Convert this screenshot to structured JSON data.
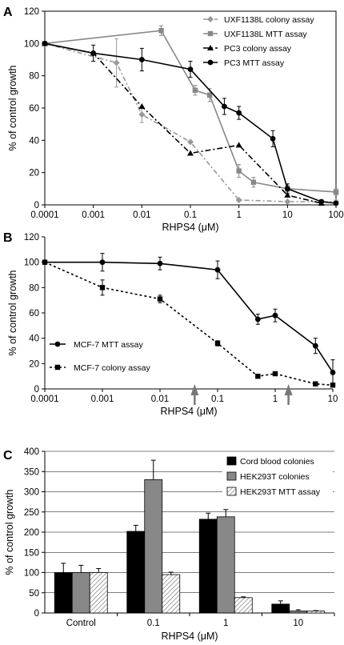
{
  "panels": {
    "a": {
      "letter": "A"
    },
    "b": {
      "letter": "B"
    },
    "c": {
      "letter": "C"
    }
  },
  "chart_data": [
    {
      "type": "line",
      "panel": "A",
      "xlabel": "RHPS4 (μM)",
      "ylabel": "% of control growth",
      "xscale": "log",
      "xlim": [
        0.0001,
        100
      ],
      "ylim": [
        0,
        120
      ],
      "x_tick_labels": [
        "0.0001",
        "0.001",
        "0.01",
        "0.1",
        "1",
        "10",
        "100"
      ],
      "y_tick_labels": [
        "0",
        "20",
        "40",
        "60",
        "80",
        "100",
        "120"
      ],
      "grid": false,
      "legend_position": "top-right",
      "series": [
        {
          "name": "UXF1138L colony assay",
          "color": "#999999",
          "marker": "diamond",
          "dash": "6,3,2,3",
          "x": [
            0.0001,
            0.003,
            0.01,
            0.1,
            1,
            10,
            100
          ],
          "y": [
            100,
            88,
            56,
            39,
            3,
            2,
            2
          ],
          "err": [
            0,
            15,
            5,
            0,
            0,
            0,
            0
          ]
        },
        {
          "name": "UXF1138L MTT assay",
          "color": "#888888",
          "marker": "square",
          "dash": "",
          "x": [
            0.0001,
            0.025,
            0.125,
            0.25,
            1,
            2,
            10,
            100
          ],
          "y": [
            100,
            108,
            71,
            68,
            21,
            14,
            10,
            8
          ],
          "err": [
            0,
            3,
            3,
            4,
            4,
            3,
            2,
            2
          ]
        },
        {
          "name": "PC3 colony assay",
          "color": "#000000",
          "marker": "triangle",
          "dash": "7,3,2,3",
          "x": [
            0.0001,
            0.001,
            0.01,
            0.1,
            1,
            10,
            50
          ],
          "y": [
            100,
            94,
            61,
            32,
            37,
            6,
            1
          ],
          "err": [
            0,
            0,
            0,
            0,
            0,
            0,
            0
          ]
        },
        {
          "name": "PC3 MTT assay",
          "color": "#000000",
          "marker": "circle",
          "dash": "",
          "x": [
            0.0001,
            0.001,
            0.01,
            0.1,
            0.5,
            1,
            5,
            10,
            50,
            100
          ],
          "y": [
            100,
            94,
            90,
            84,
            61,
            57,
            41,
            10,
            2,
            1
          ],
          "err": [
            0,
            5,
            7,
            5,
            5,
            4,
            5,
            3,
            1,
            1
          ]
        }
      ]
    },
    {
      "type": "line",
      "panel": "B",
      "xlabel": "RHPS4 (μM)",
      "ylabel": "% of control growth",
      "xscale": "log",
      "xlim": [
        0.0001,
        10
      ],
      "ylim": [
        0,
        120
      ],
      "x_tick_labels": [
        "0.0001",
        "0.001",
        "0.01",
        "0.1",
        "1",
        "10"
      ],
      "y_tick_labels": [
        "0",
        "20",
        "40",
        "60",
        "80",
        "100",
        "120"
      ],
      "grid": false,
      "legend_position": "bottom-left",
      "arrows_x": [
        0.04,
        1.7
      ],
      "series": [
        {
          "name": "MCF-7 MTT assay",
          "color": "#000000",
          "marker": "circle",
          "dash": "",
          "x": [
            0.0001,
            0.001,
            0.01,
            0.1,
            0.5,
            1,
            5,
            10
          ],
          "y": [
            100,
            100,
            99,
            94,
            55,
            58,
            34,
            13
          ],
          "err": [
            0,
            7,
            5,
            7,
            4,
            5,
            6,
            10
          ]
        },
        {
          "name": "MCF-7 colony assay",
          "color": "#000000",
          "marker": "square",
          "dash": "3,3",
          "x": [
            0.0001,
            0.001,
            0.01,
            0.1,
            0.5,
            1,
            5,
            10
          ],
          "y": [
            100,
            80,
            71,
            36,
            10,
            12,
            4,
            3
          ],
          "err": [
            0,
            6,
            3,
            2,
            1,
            1,
            1,
            1
          ]
        }
      ]
    },
    {
      "type": "bar",
      "panel": "C",
      "xlabel": "RHPS4 (μM)",
      "ylabel": "% of control growth",
      "categories": [
        "Control",
        "0.1",
        "1",
        "10"
      ],
      "ylim": [
        0,
        400
      ],
      "y_tick_labels": [
        "0",
        "50",
        "100",
        "150",
        "200",
        "250",
        "300",
        "350",
        "400"
      ],
      "grid": true,
      "legend_position": "top-right",
      "series": [
        {
          "name": "Cord blood colonies",
          "fill": "#000000",
          "pattern": "solid",
          "values": [
            100,
            202,
            232,
            22
          ],
          "err": [
            23,
            15,
            15,
            8
          ]
        },
        {
          "name": "HEK293T colonies",
          "fill": "#888888",
          "pattern": "solid",
          "values": [
            100,
            330,
            238,
            5
          ],
          "err": [
            18,
            48,
            18,
            3
          ]
        },
        {
          "name": "HEK293T MTT assay",
          "fill": "#ffffff",
          "pattern": "hatch",
          "values": [
            100,
            95,
            38,
            5
          ],
          "err": [
            10,
            6,
            2,
            1
          ]
        }
      ]
    }
  ]
}
